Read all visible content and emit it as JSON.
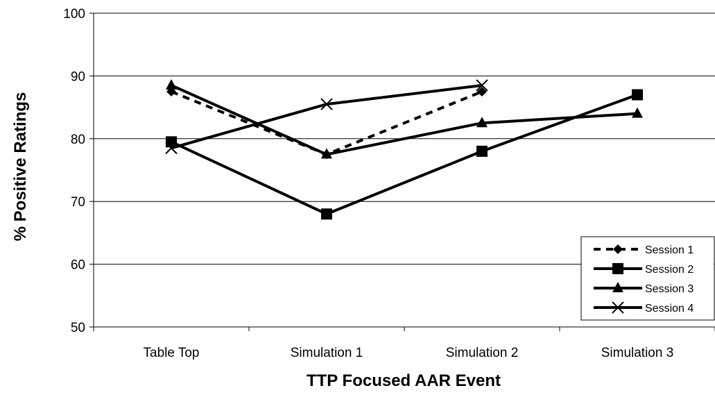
{
  "chart_data": {
    "type": "line",
    "title": "",
    "xlabel": "TTP Focused AAR Event",
    "ylabel": "% Positive Ratings",
    "categories": [
      "Table Top",
      "Simulation 1",
      "Simulation 2",
      "Simulation 3"
    ],
    "ylim": [
      50,
      100
    ],
    "yticks": [
      50,
      60,
      70,
      80,
      90,
      100
    ],
    "grid": "horizontal",
    "legend_position": "bottom-right",
    "series": [
      {
        "name": "Session 1",
        "marker": "diamond",
        "dash": "dashed",
        "values": [
          87.5,
          77.5,
          87.5,
          null
        ]
      },
      {
        "name": "Session 2",
        "marker": "square",
        "dash": "solid",
        "values": [
          79.5,
          68,
          78,
          87
        ]
      },
      {
        "name": "Session 3",
        "marker": "triangle",
        "dash": "solid",
        "values": [
          88.5,
          77.5,
          82.5,
          84
        ]
      },
      {
        "name": "Session 4",
        "marker": "x",
        "dash": "solid",
        "values": [
          78.5,
          85.5,
          88.5,
          null
        ]
      }
    ]
  }
}
